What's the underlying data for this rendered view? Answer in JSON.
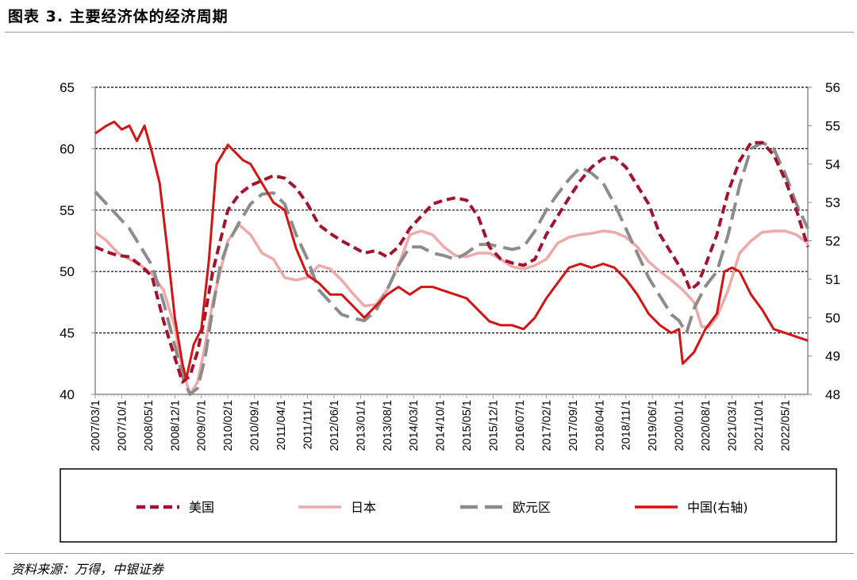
{
  "page": {
    "title": "图表 3. 主要经济体的经济周期",
    "source": "资料来源：万得，中银证券"
  },
  "chart_data": {
    "type": "line",
    "title": "图表 3. 主要经济体的经济周期",
    "left_axis": {
      "min": 40,
      "max": 65,
      "ticks": [
        40,
        45,
        50,
        55,
        60,
        65
      ]
    },
    "right_axis": {
      "min": 48,
      "max": 56,
      "ticks": [
        48,
        49,
        50,
        51,
        52,
        53,
        54,
        55,
        56
      ]
    },
    "gridlines": [
      45,
      50,
      55,
      60,
      65
    ],
    "x_range": [
      "2007/03/1",
      "2022/11/1"
    ],
    "x_tick_labels": [
      "2007/03/1",
      "2007/10/1",
      "2008/05/1",
      "2008/12/1",
      "2009/07/1",
      "2010/02/1",
      "2010/09/1",
      "2011/04/1",
      "2011/11/1",
      "2012/06/1",
      "2013/01/1",
      "2013/08/1",
      "2014/03/1",
      "2014/10/1",
      "2015/05/1",
      "2015/12/1",
      "2016/07/1",
      "2017/02/1",
      "2017/09/1",
      "2018/04/1",
      "2018/11/1",
      "2019/06/1",
      "2020/01/1",
      "2020/08/1",
      "2021/03/1",
      "2021/10/1",
      "2022/05/1"
    ],
    "legend": {
      "position": "bottom"
    },
    "series": [
      {
        "name": "美国",
        "axis": "left",
        "color": "#a3132d",
        "style": "dashed",
        "points": [
          [
            "2007-03",
            52.0
          ],
          [
            "2007-06",
            51.6
          ],
          [
            "2007-09",
            51.3
          ],
          [
            "2007-12",
            51.2
          ],
          [
            "2008-03",
            50.5
          ],
          [
            "2008-06",
            49.6
          ],
          [
            "2008-09",
            46.0
          ],
          [
            "2008-12",
            43.0
          ],
          [
            "2009-02",
            41.0
          ],
          [
            "2009-04",
            41.5
          ],
          [
            "2009-06",
            43.5
          ],
          [
            "2009-08",
            46.5
          ],
          [
            "2009-10",
            50.0
          ],
          [
            "2009-12",
            52.5
          ],
          [
            "2010-02",
            55.0
          ],
          [
            "2010-05",
            56.3
          ],
          [
            "2010-08",
            57.0
          ],
          [
            "2010-11",
            57.4
          ],
          [
            "2011-02",
            57.8
          ],
          [
            "2011-05",
            57.6
          ],
          [
            "2011-08",
            56.8
          ],
          [
            "2011-11",
            55.5
          ],
          [
            "2012-02",
            53.8
          ],
          [
            "2012-05",
            53.1
          ],
          [
            "2012-08",
            52.5
          ],
          [
            "2012-11",
            52.0
          ],
          [
            "2013-02",
            51.5
          ],
          [
            "2013-05",
            51.7
          ],
          [
            "2013-08",
            51.2
          ],
          [
            "2013-11",
            52.0
          ],
          [
            "2014-02",
            53.5
          ],
          [
            "2014-05",
            54.5
          ],
          [
            "2014-08",
            55.5
          ],
          [
            "2014-11",
            55.8
          ],
          [
            "2015-02",
            56.0
          ],
          [
            "2015-05",
            55.8
          ],
          [
            "2015-08",
            54.5
          ],
          [
            "2015-11",
            52.0
          ],
          [
            "2016-02",
            51.0
          ],
          [
            "2016-05",
            50.7
          ],
          [
            "2016-08",
            50.5
          ],
          [
            "2016-11",
            51.0
          ],
          [
            "2017-02",
            53.0
          ],
          [
            "2017-05",
            54.5
          ],
          [
            "2017-08",
            56.0
          ],
          [
            "2017-11",
            57.4
          ],
          [
            "2018-02",
            58.5
          ],
          [
            "2018-05",
            59.2
          ],
          [
            "2018-08",
            59.3
          ],
          [
            "2018-11",
            58.5
          ],
          [
            "2019-02",
            57.0
          ],
          [
            "2019-05",
            55.5
          ],
          [
            "2019-08",
            53.0
          ],
          [
            "2019-11",
            51.5
          ],
          [
            "2020-02",
            50.0
          ],
          [
            "2020-04",
            48.5
          ],
          [
            "2020-06",
            49.0
          ],
          [
            "2020-08",
            50.5
          ],
          [
            "2020-11",
            53.0
          ],
          [
            "2021-02",
            56.5
          ],
          [
            "2021-05",
            59.0
          ],
          [
            "2021-08",
            60.5
          ],
          [
            "2021-11",
            60.5
          ],
          [
            "2022-02",
            59.5
          ],
          [
            "2022-05",
            57.5
          ],
          [
            "2022-08",
            55.0
          ],
          [
            "2022-11",
            52.0
          ]
        ]
      },
      {
        "name": "日本",
        "axis": "left",
        "color": "#f0a9a9",
        "style": "solid",
        "points": [
          [
            "2007-03",
            53.2
          ],
          [
            "2007-06",
            52.5
          ],
          [
            "2007-09",
            51.5
          ],
          [
            "2007-12",
            51.0
          ],
          [
            "2008-03",
            50.5
          ],
          [
            "2008-06",
            49.8
          ],
          [
            "2008-09",
            48.5
          ],
          [
            "2008-12",
            45.5
          ],
          [
            "2009-02",
            42.0
          ],
          [
            "2009-04",
            40.0
          ],
          [
            "2009-06",
            41.0
          ],
          [
            "2009-08",
            44.0
          ],
          [
            "2009-10",
            47.5
          ],
          [
            "2009-12",
            50.0
          ],
          [
            "2010-02",
            52.5
          ],
          [
            "2010-05",
            53.8
          ],
          [
            "2010-08",
            53.0
          ],
          [
            "2010-11",
            51.5
          ],
          [
            "2011-02",
            51.0
          ],
          [
            "2011-05",
            49.5
          ],
          [
            "2011-08",
            49.3
          ],
          [
            "2011-11",
            49.5
          ],
          [
            "2012-02",
            50.5
          ],
          [
            "2012-05",
            50.2
          ],
          [
            "2012-08",
            49.3
          ],
          [
            "2012-11",
            48.2
          ],
          [
            "2013-02",
            47.2
          ],
          [
            "2013-05",
            47.3
          ],
          [
            "2013-08",
            48.5
          ],
          [
            "2013-11",
            50.5
          ],
          [
            "2014-02",
            53.0
          ],
          [
            "2014-05",
            53.3
          ],
          [
            "2014-08",
            53.0
          ],
          [
            "2014-11",
            52.0
          ],
          [
            "2015-02",
            51.3
          ],
          [
            "2015-05",
            51.2
          ],
          [
            "2015-08",
            51.5
          ],
          [
            "2015-11",
            51.5
          ],
          [
            "2016-02",
            51.0
          ],
          [
            "2016-05",
            50.4
          ],
          [
            "2016-08",
            50.2
          ],
          [
            "2016-11",
            50.5
          ],
          [
            "2017-02",
            51.0
          ],
          [
            "2017-05",
            52.3
          ],
          [
            "2017-08",
            52.8
          ],
          [
            "2017-11",
            53.0
          ],
          [
            "2018-02",
            53.1
          ],
          [
            "2018-05",
            53.3
          ],
          [
            "2018-08",
            53.2
          ],
          [
            "2018-11",
            52.8
          ],
          [
            "2019-02",
            52.0
          ],
          [
            "2019-05",
            50.8
          ],
          [
            "2019-08",
            50.0
          ],
          [
            "2019-11",
            49.3
          ],
          [
            "2020-02",
            48.5
          ],
          [
            "2020-05",
            47.5
          ],
          [
            "2020-07",
            45.5
          ],
          [
            "2020-09",
            45.5
          ],
          [
            "2020-11",
            46.3
          ],
          [
            "2021-02",
            48.5
          ],
          [
            "2021-05",
            51.5
          ],
          [
            "2021-08",
            52.5
          ],
          [
            "2021-11",
            53.2
          ],
          [
            "2022-02",
            53.3
          ],
          [
            "2022-05",
            53.3
          ],
          [
            "2022-08",
            53.0
          ],
          [
            "2022-11",
            52.3
          ]
        ]
      },
      {
        "name": "欧元区",
        "axis": "left",
        "color": "#8c8c8c",
        "style": "long-dash",
        "points": [
          [
            "2007-03",
            56.5
          ],
          [
            "2007-06",
            55.5
          ],
          [
            "2007-09",
            54.5
          ],
          [
            "2007-12",
            53.5
          ],
          [
            "2008-03",
            52.0
          ],
          [
            "2008-06",
            50.5
          ],
          [
            "2008-09",
            47.5
          ],
          [
            "2008-12",
            44.0
          ],
          [
            "2009-02",
            41.5
          ],
          [
            "2009-04",
            40.0
          ],
          [
            "2009-06",
            40.5
          ],
          [
            "2009-08",
            43.0
          ],
          [
            "2009-10",
            47.0
          ],
          [
            "2009-12",
            50.5
          ],
          [
            "2010-02",
            52.3
          ],
          [
            "2010-05",
            54.0
          ],
          [
            "2010-08",
            55.5
          ],
          [
            "2010-11",
            56.3
          ],
          [
            "2011-02",
            56.4
          ],
          [
            "2011-05",
            55.5
          ],
          [
            "2011-08",
            53.0
          ],
          [
            "2011-11",
            51.0
          ],
          [
            "2012-02",
            48.5
          ],
          [
            "2012-05",
            47.5
          ],
          [
            "2012-08",
            46.5
          ],
          [
            "2012-11",
            46.2
          ],
          [
            "2013-02",
            46.0
          ],
          [
            "2013-05",
            46.8
          ],
          [
            "2013-08",
            48.5
          ],
          [
            "2013-11",
            50.5
          ],
          [
            "2014-02",
            52.0
          ],
          [
            "2014-05",
            52.0
          ],
          [
            "2014-08",
            51.5
          ],
          [
            "2014-11",
            51.3
          ],
          [
            "2015-02",
            51.0
          ],
          [
            "2015-05",
            51.5
          ],
          [
            "2015-08",
            52.2
          ],
          [
            "2015-11",
            52.2
          ],
          [
            "2016-02",
            52.0
          ],
          [
            "2016-05",
            51.8
          ],
          [
            "2016-08",
            52.0
          ],
          [
            "2016-11",
            53.3
          ],
          [
            "2017-02",
            55.0
          ],
          [
            "2017-05",
            56.3
          ],
          [
            "2017-08",
            57.5
          ],
          [
            "2017-11",
            58.5
          ],
          [
            "2018-02",
            58.0
          ],
          [
            "2018-05",
            57.2
          ],
          [
            "2018-08",
            55.5
          ],
          [
            "2018-11",
            53.5
          ],
          [
            "2019-02",
            51.5
          ],
          [
            "2019-05",
            49.5
          ],
          [
            "2019-08",
            48.0
          ],
          [
            "2019-11",
            46.5
          ],
          [
            "2020-01",
            46.0
          ],
          [
            "2020-03",
            45.0
          ],
          [
            "2020-05",
            47.0
          ],
          [
            "2020-08",
            48.8
          ],
          [
            "2020-11",
            50.0
          ],
          [
            "2021-02",
            53.0
          ],
          [
            "2021-05",
            57.0
          ],
          [
            "2021-08",
            60.0
          ],
          [
            "2021-11",
            60.5
          ],
          [
            "2022-02",
            60.0
          ],
          [
            "2022-05",
            58.0
          ],
          [
            "2022-08",
            55.5
          ],
          [
            "2022-11",
            53.5
          ]
        ]
      },
      {
        "name": "中国(右轴)",
        "axis": "right",
        "color": "#d41414",
        "style": "solid",
        "points": [
          [
            "2007-03",
            54.8
          ],
          [
            "2007-06",
            55.0
          ],
          [
            "2007-08",
            55.1
          ],
          [
            "2007-10",
            54.9
          ],
          [
            "2007-12",
            55.0
          ],
          [
            "2008-02",
            54.6
          ],
          [
            "2008-04",
            55.0
          ],
          [
            "2008-06",
            54.3
          ],
          [
            "2008-08",
            53.5
          ],
          [
            "2008-10",
            51.8
          ],
          [
            "2008-12",
            50.0
          ],
          [
            "2009-02",
            48.8
          ],
          [
            "2009-03",
            48.4
          ],
          [
            "2009-05",
            49.3
          ],
          [
            "2009-07",
            49.7
          ],
          [
            "2009-09",
            51.5
          ],
          [
            "2009-11",
            54.0
          ],
          [
            "2010-02",
            54.5
          ],
          [
            "2010-04",
            54.3
          ],
          [
            "2010-06",
            54.1
          ],
          [
            "2010-08",
            54.0
          ],
          [
            "2010-11",
            53.5
          ],
          [
            "2011-02",
            53.0
          ],
          [
            "2011-05",
            52.8
          ],
          [
            "2011-08",
            51.8
          ],
          [
            "2011-11",
            51.1
          ],
          [
            "2012-02",
            50.9
          ],
          [
            "2012-05",
            50.6
          ],
          [
            "2012-08",
            50.6
          ],
          [
            "2012-11",
            50.3
          ],
          [
            "2013-02",
            50.0
          ],
          [
            "2013-05",
            50.3
          ],
          [
            "2013-08",
            50.6
          ],
          [
            "2013-11",
            50.8
          ],
          [
            "2014-02",
            50.6
          ],
          [
            "2014-05",
            50.8
          ],
          [
            "2014-08",
            50.8
          ],
          [
            "2014-11",
            50.7
          ],
          [
            "2015-02",
            50.6
          ],
          [
            "2015-05",
            50.5
          ],
          [
            "2015-08",
            50.2
          ],
          [
            "2015-11",
            49.9
          ],
          [
            "2016-02",
            49.8
          ],
          [
            "2016-05",
            49.8
          ],
          [
            "2016-08",
            49.7
          ],
          [
            "2016-11",
            50.0
          ],
          [
            "2017-02",
            50.5
          ],
          [
            "2017-05",
            50.9
          ],
          [
            "2017-08",
            51.3
          ],
          [
            "2017-11",
            51.4
          ],
          [
            "2018-02",
            51.3
          ],
          [
            "2018-05",
            51.4
          ],
          [
            "2018-08",
            51.3
          ],
          [
            "2018-11",
            51.0
          ],
          [
            "2019-02",
            50.6
          ],
          [
            "2019-05",
            50.1
          ],
          [
            "2019-08",
            49.8
          ],
          [
            "2019-11",
            49.6
          ],
          [
            "2020-01",
            49.7
          ],
          [
            "2020-02",
            48.8
          ],
          [
            "2020-05",
            49.1
          ],
          [
            "2020-08",
            49.7
          ],
          [
            "2020-11",
            50.1
          ],
          [
            "2021-01",
            51.2
          ],
          [
            "2021-03",
            51.3
          ],
          [
            "2021-05",
            51.2
          ],
          [
            "2021-08",
            50.6
          ],
          [
            "2021-11",
            50.2
          ],
          [
            "2022-02",
            49.7
          ],
          [
            "2022-05",
            49.6
          ],
          [
            "2022-08",
            49.5
          ],
          [
            "2022-11",
            49.4
          ]
        ]
      }
    ]
  }
}
